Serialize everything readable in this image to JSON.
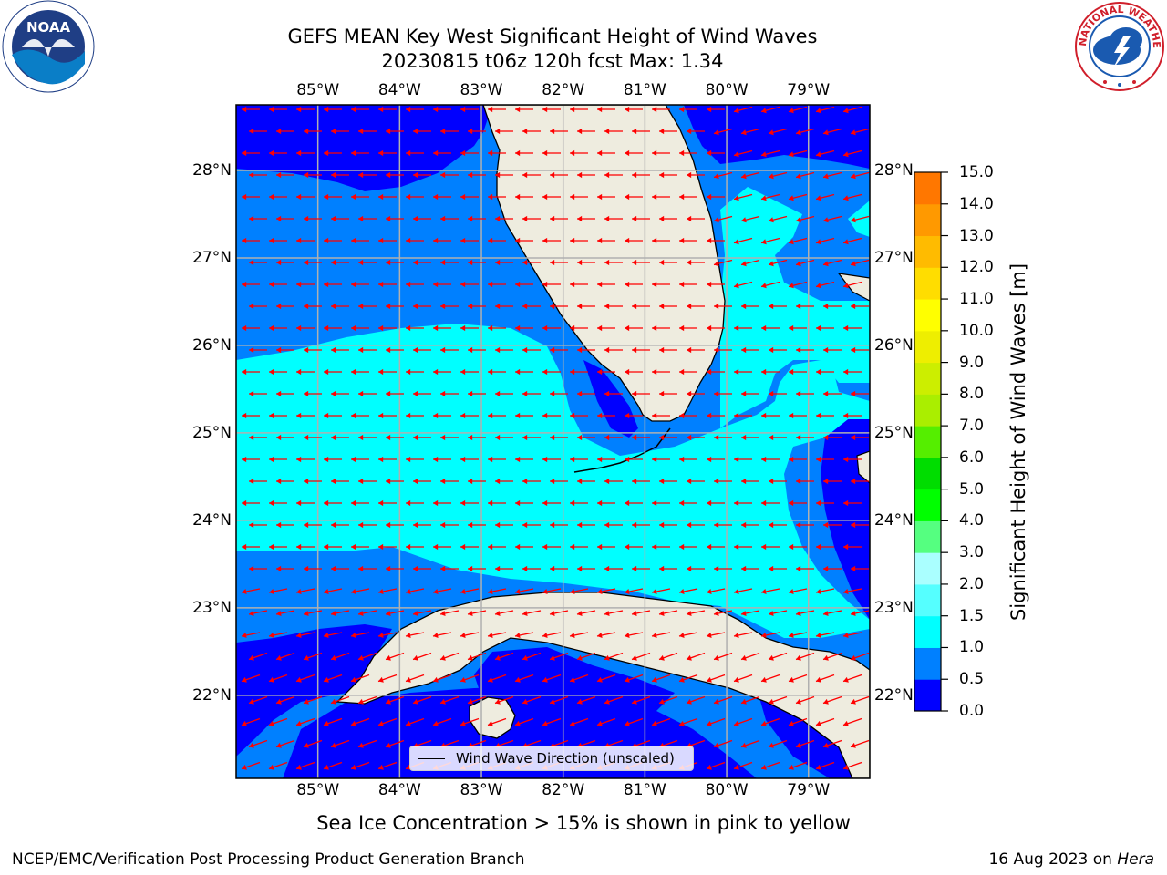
{
  "title": {
    "line1": "GEFS MEAN Key West Significant Height of Wind Waves",
    "line2": "20230815 t06z 120h fcst   Max: 1.34"
  },
  "logos": {
    "left": "NOAA",
    "right_text": "NATIONAL WEATHER SERVICE"
  },
  "map": {
    "lon_labels": [
      "85°W",
      "84°W",
      "83°W",
      "82°W",
      "81°W",
      "80°W",
      "79°W"
    ],
    "lat_labels": [
      "28°N",
      "27°N",
      "26°N",
      "25°N",
      "24°N",
      "23°N",
      "22°N"
    ],
    "lon_values": [
      -85,
      -84,
      -83,
      -82,
      -81,
      -80,
      -79
    ],
    "lat_values": [
      28,
      27,
      26,
      25,
      24,
      23,
      22
    ],
    "extent": {
      "lon_min": -86.0,
      "lon_max": -78.25,
      "lat_min": 21.05,
      "lat_max": 28.75
    },
    "land_color": "#eeecdf",
    "coast_color": "#000000",
    "arrow_color": "#ff0000",
    "wave_direction": "westward",
    "legend_label": "Wind Wave Direction (unscaled)"
  },
  "colorbar": {
    "title": "Significant Height of Wind Waves [m]",
    "ticks": [
      "15.0",
      "14.0",
      "13.0",
      "12.0",
      "11.0",
      "10.0",
      "9.0",
      "8.0",
      "7.0",
      "6.0",
      "5.0",
      "4.0",
      "3.0",
      "2.0",
      "1.5",
      "1.0",
      "0.5",
      "0.0"
    ],
    "colors": [
      "#0000ff",
      "#0080ff",
      "#00ffff",
      "#55ffff",
      "#aaffff",
      "#55ff80",
      "#00ff00",
      "#00dd00",
      "#55ee00",
      "#aaee00",
      "#ccee00",
      "#eeee00",
      "#ffff00",
      "#ffdd00",
      "#ffbb00",
      "#ff9900",
      "#ff7700",
      "#ff4400",
      "#ff0000"
    ]
  },
  "footer": {
    "subtitle": "Sea Ice Concentration > 15% is shown in pink to yellow",
    "left": "NCEP/EMC/Verification Post Processing Product Generation Branch",
    "right_date": "16 Aug 2023 on ",
    "right_host": "Hera"
  }
}
